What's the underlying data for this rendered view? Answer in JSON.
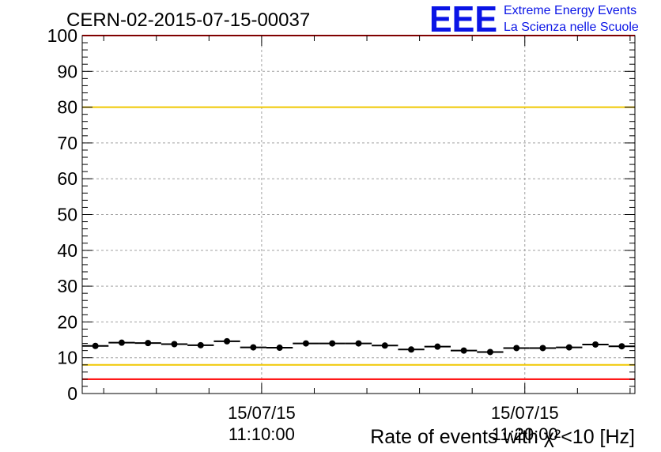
{
  "header": {
    "run_title": "CERN-02-2015-07-15-00037",
    "logo_text": "EEE",
    "logo_line1": "Extreme Energy Events",
    "logo_line2": "La Scienza nelle Scuole"
  },
  "colors": {
    "threshold_red": "#ff0000",
    "threshold_yellow": "#f0c800",
    "logo_blue": "#0a14e6",
    "grid": "#a0a0a0",
    "marker": "#000000"
  },
  "chart_data": {
    "type": "scatter",
    "xlabel": "Rate of events with χ²<10 [Hz]",
    "ylabel": "",
    "ylim": [
      0,
      100
    ],
    "yticks": [
      0,
      10,
      20,
      30,
      40,
      50,
      60,
      70,
      80,
      90,
      100
    ],
    "ytick_labels": [
      "0",
      "10",
      "20",
      "30",
      "40",
      "50",
      "60",
      "70",
      "80",
      "90",
      "100"
    ],
    "xlim": [
      "11:03:11",
      "11:24:11"
    ],
    "xticks": [
      {
        "time": "11:10:00",
        "date_label": "15/07/15",
        "time_label": "11:10:00"
      },
      {
        "time": "11:20:00",
        "date_label": "15/07/15",
        "time_label": "11:20:00"
      }
    ],
    "grid": true,
    "error_bars": "horizontal bin width",
    "bin_width_s": 60,
    "reference_lines": [
      {
        "y": 100,
        "color": "red"
      },
      {
        "y": 80,
        "color": "yellow"
      },
      {
        "y": 8,
        "color": "yellow"
      },
      {
        "y": 4,
        "color": "red"
      }
    ],
    "series": [
      {
        "points": [
          {
            "x": "11:03:41",
            "y": 13.3
          },
          {
            "x": "11:04:41",
            "y": 14.2
          },
          {
            "x": "11:05:41",
            "y": 14.1
          },
          {
            "x": "11:06:41",
            "y": 13.8
          },
          {
            "x": "11:07:41",
            "y": 13.5
          },
          {
            "x": "11:08:41",
            "y": 14.6
          },
          {
            "x": "11:09:41",
            "y": 12.9
          },
          {
            "x": "11:10:41",
            "y": 12.8
          },
          {
            "x": "11:11:41",
            "y": 14.0
          },
          {
            "x": "11:12:41",
            "y": 14.0
          },
          {
            "x": "11:13:41",
            "y": 14.0
          },
          {
            "x": "11:14:41",
            "y": 13.4
          },
          {
            "x": "11:15:41",
            "y": 12.3
          },
          {
            "x": "11:16:41",
            "y": 13.1
          },
          {
            "x": "11:17:41",
            "y": 12.0
          },
          {
            "x": "11:18:41",
            "y": 11.6
          },
          {
            "x": "11:19:41",
            "y": 12.7
          },
          {
            "x": "11:20:41",
            "y": 12.7
          },
          {
            "x": "11:21:41",
            "y": 12.9
          },
          {
            "x": "11:22:41",
            "y": 13.7
          },
          {
            "x": "11:23:41",
            "y": 13.2
          }
        ]
      }
    ]
  }
}
